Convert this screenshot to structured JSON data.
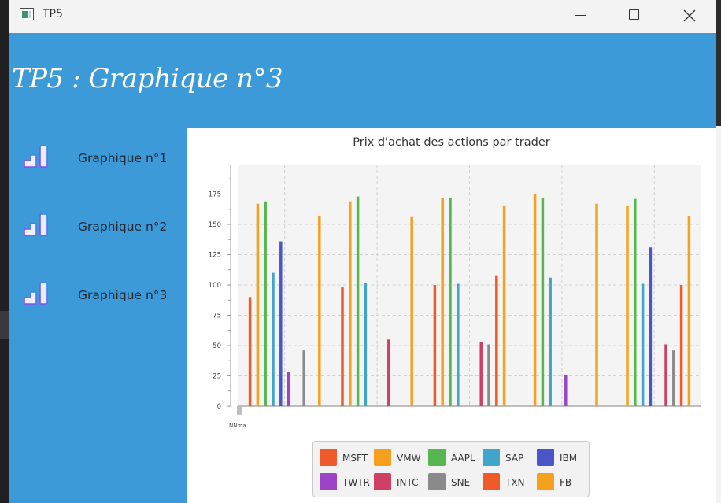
{
  "window": {
    "title": "TP5",
    "buttons": {
      "minimize": "minimize",
      "maximize": "maximize",
      "close": "close"
    }
  },
  "page": {
    "title": "TP5 : Graphique n°3"
  },
  "sidebar": {
    "items": [
      {
        "label": "Graphique n°1",
        "icon": "bar-chart-icon"
      },
      {
        "label": "Graphique n°2",
        "icon": "bar-chart-icon"
      },
      {
        "label": "Graphique n°3",
        "icon": "bar-chart-icon"
      }
    ]
  },
  "colors": {
    "header_bg": "#3c9ad9",
    "chart_plot_bg": "#f4f4f4",
    "icon_gradient_from": "#9b3df0",
    "icon_gradient_to": "#2f8ee8"
  },
  "chart_data": {
    "type": "bar",
    "title": "Prix d'achat des actions par trader",
    "xlabel": "",
    "ylabel": "",
    "ylim": [
      0,
      200
    ],
    "yticks": [
      0,
      25,
      50,
      75,
      100,
      125,
      150,
      175
    ],
    "grid": true,
    "legend_position": "bottom",
    "categories": [
      "",
      "",
      "",
      "",
      ""
    ],
    "stray_bar": {
      "label": "NNma",
      "value": -7,
      "color": "#bdbdbd"
    },
    "series": [
      {
        "name": "MSFT",
        "color": "#f0592a",
        "values": [
          90,
          98,
          100,
          null,
          null
        ]
      },
      {
        "name": "VMW",
        "color": "#f6a11d",
        "values": [
          167,
          169,
          172,
          175,
          165
        ]
      },
      {
        "name": "AAPL",
        "color": "#56b64f",
        "values": [
          169,
          173,
          172,
          172,
          171
        ]
      },
      {
        "name": "SAP",
        "color": "#41a5c9",
        "values": [
          110,
          102,
          101,
          106,
          101
        ]
      },
      {
        "name": "IBM",
        "color": "#4a56c8",
        "values": [
          136,
          null,
          null,
          null,
          131
        ]
      },
      {
        "name": "TWTR",
        "color": "#9c43c8",
        "values": [
          28,
          null,
          null,
          26,
          null
        ]
      },
      {
        "name": "INTC",
        "color": "#cf3f63",
        "values": [
          null,
          55,
          53,
          null,
          51
        ]
      },
      {
        "name": "SNE",
        "color": "#8a8a8a",
        "values": [
          46,
          null,
          51,
          null,
          46
        ]
      },
      {
        "name": "TXN",
        "color": "#f0592a",
        "values": [
          null,
          null,
          108,
          null,
          100
        ]
      },
      {
        "name": "FB",
        "color": "#f6a11d",
        "values": [
          157,
          156,
          165,
          167,
          157
        ]
      }
    ]
  }
}
